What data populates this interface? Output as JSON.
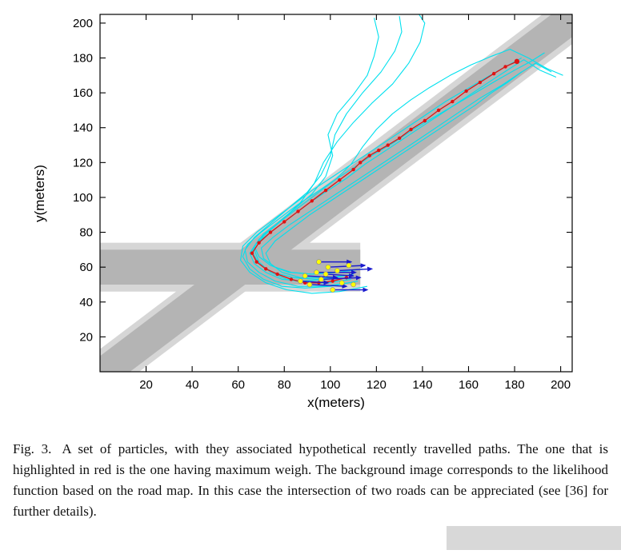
{
  "figure": {
    "caption_label": "Fig. 3.",
    "caption_text": "A set of particles, with they associated hypothetical recently travelled paths. The one that is highlighted in red is the one having maximum weigh. The background image corresponds to the likelihood function based on the road map. In this case the intersection of two roads can be appreciated (see [36] for further details)."
  },
  "colors": {
    "road_dark": "#b4b4b4",
    "road_light": "#d6d6d6",
    "particle_path": "#00e0ee",
    "best_path": "#e01212",
    "particle_vector": "#1a1acd",
    "particle_dot": "#ffff00",
    "axis": "#000000",
    "artifact_gray": "#d8d8d8"
  },
  "chart_data": {
    "type": "line",
    "title": "",
    "xlabel": "x(meters)",
    "ylabel": "y(meters)",
    "xlim": [
      0,
      205
    ],
    "ylim": [
      0,
      205
    ],
    "xticks": [
      20,
      40,
      60,
      80,
      100,
      120,
      140,
      160,
      180,
      200
    ],
    "yticks": [
      20,
      40,
      60,
      80,
      100,
      120,
      140,
      160,
      180,
      200
    ],
    "grid": false,
    "legend": null,
    "roads": [
      {
        "name": "diagonal-road",
        "p1": [
          -8,
          -10
        ],
        "p2": [
          210,
          208
        ],
        "dark_halfwidth": 11,
        "light_halfwidth": 15
      },
      {
        "name": "horizontal-road",
        "p1": [
          0,
          60
        ],
        "p2": [
          113,
          60
        ],
        "dark_halfwidth": 10,
        "light_halfwidth": 14
      }
    ],
    "particle_paths": [
      [
        [
          110,
          56
        ],
        [
          98,
          53
        ],
        [
          88,
          52
        ],
        [
          79,
          53
        ],
        [
          72,
          57
        ],
        [
          67,
          62
        ],
        [
          65,
          68
        ],
        [
          68,
          74
        ],
        [
          75,
          81
        ],
        [
          83,
          89
        ],
        [
          91,
          97
        ],
        [
          99,
          104
        ],
        [
          107,
          111
        ],
        [
          115,
          119
        ],
        [
          123,
          126
        ],
        [
          131,
          133
        ],
        [
          139,
          140
        ],
        [
          147,
          147
        ],
        [
          155,
          154
        ],
        [
          163,
          161
        ],
        [
          171,
          168
        ],
        [
          178,
          174
        ],
        [
          184,
          179
        ],
        [
          191,
          173
        ],
        [
          198,
          169
        ]
      ],
      [
        [
          112,
          52
        ],
        [
          100,
          49
        ],
        [
          89,
          48
        ],
        [
          79,
          49
        ],
        [
          71,
          53
        ],
        [
          65,
          59
        ],
        [
          62,
          66
        ],
        [
          64,
          73
        ],
        [
          70,
          80
        ],
        [
          78,
          88
        ],
        [
          86,
          96
        ],
        [
          94,
          103
        ],
        [
          102,
          110
        ],
        [
          110,
          117
        ],
        [
          118,
          124
        ],
        [
          127,
          131
        ],
        [
          136,
          139
        ],
        [
          145,
          146
        ],
        [
          154,
          153
        ],
        [
          163,
          160
        ],
        [
          172,
          167
        ],
        [
          180,
          173
        ],
        [
          187,
          178
        ],
        [
          193,
          183
        ]
      ],
      [
        [
          108,
          51
        ],
        [
          97,
          49
        ],
        [
          86,
          49
        ],
        [
          76,
          52
        ],
        [
          69,
          57
        ],
        [
          64,
          63
        ],
        [
          63,
          70
        ],
        [
          67,
          77
        ],
        [
          74,
          85
        ],
        [
          82,
          94
        ],
        [
          90,
          103
        ],
        [
          96,
          113
        ],
        [
          100,
          124
        ],
        [
          102,
          136
        ],
        [
          107,
          148
        ],
        [
          114,
          160
        ],
        [
          122,
          172
        ],
        [
          128,
          184
        ],
        [
          131,
          195
        ],
        [
          130,
          204
        ]
      ],
      [
        [
          105,
          55
        ],
        [
          94,
          53
        ],
        [
          84,
          54
        ],
        [
          75,
          57
        ],
        [
          69,
          62
        ],
        [
          66,
          69
        ],
        [
          69,
          76
        ],
        [
          76,
          84
        ],
        [
          84,
          93
        ],
        [
          92,
          102
        ],
        [
          98,
          112
        ],
        [
          101,
          124
        ],
        [
          99,
          136
        ],
        [
          103,
          148
        ],
        [
          110,
          159
        ],
        [
          116,
          170
        ],
        [
          119,
          181
        ],
        [
          121,
          192
        ],
        [
          119,
          203
        ]
      ],
      [
        [
          103,
          57
        ],
        [
          92,
          56
        ],
        [
          82,
          57
        ],
        [
          74,
          61
        ],
        [
          69,
          66
        ],
        [
          67,
          72
        ],
        [
          71,
          79
        ],
        [
          78,
          86
        ],
        [
          86,
          94
        ],
        [
          94,
          102
        ],
        [
          102,
          110
        ],
        [
          109,
          119
        ],
        [
          114,
          129
        ],
        [
          120,
          139
        ],
        [
          127,
          148
        ],
        [
          135,
          156
        ],
        [
          143,
          163
        ],
        [
          152,
          170
        ],
        [
          161,
          176
        ],
        [
          170,
          181
        ],
        [
          178,
          185
        ],
        [
          186,
          180
        ],
        [
          194,
          174
        ],
        [
          201,
          170
        ]
      ],
      [
        [
          114,
          59
        ],
        [
          103,
          57
        ],
        [
          92,
          56
        ],
        [
          83,
          57
        ],
        [
          76,
          60
        ],
        [
          71,
          65
        ],
        [
          70,
          71
        ],
        [
          75,
          77
        ],
        [
          82,
          84
        ],
        [
          90,
          91
        ],
        [
          98,
          98
        ],
        [
          106,
          105
        ],
        [
          114,
          112
        ],
        [
          122,
          119
        ],
        [
          130,
          126
        ],
        [
          138,
          133
        ],
        [
          147,
          141
        ],
        [
          156,
          149
        ],
        [
          165,
          157
        ],
        [
          174,
          164
        ],
        [
          182,
          171
        ],
        [
          189,
          177
        ],
        [
          196,
          172
        ]
      ],
      [
        [
          116,
          49
        ],
        [
          104,
          46
        ],
        [
          92,
          45
        ],
        [
          81,
          47
        ],
        [
          72,
          51
        ],
        [
          65,
          57
        ],
        [
          61,
          64
        ],
        [
          62,
          72
        ],
        [
          68,
          80
        ],
        [
          76,
          88
        ],
        [
          84,
          96
        ],
        [
          92,
          104
        ],
        [
          100,
          111
        ],
        [
          108,
          118
        ],
        [
          116,
          125
        ],
        [
          124,
          132
        ],
        [
          132,
          139
        ],
        [
          141,
          147
        ],
        [
          150,
          155
        ],
        [
          159,
          162
        ],
        [
          168,
          169
        ],
        [
          176,
          175
        ],
        [
          183,
          180
        ]
      ],
      [
        [
          109,
          53
        ],
        [
          99,
          51
        ],
        [
          90,
          51
        ],
        [
          81,
          53
        ],
        [
          74,
          57
        ],
        [
          69,
          63
        ],
        [
          67,
          70
        ],
        [
          71,
          78
        ],
        [
          79,
          87
        ],
        [
          87,
          97
        ],
        [
          93,
          108
        ],
        [
          97,
          120
        ],
        [
          103,
          132
        ],
        [
          110,
          143
        ],
        [
          118,
          154
        ],
        [
          127,
          165
        ],
        [
          134,
          177
        ],
        [
          139,
          189
        ],
        [
          141,
          200
        ],
        [
          138,
          206
        ]
      ],
      [
        [
          96,
          54
        ],
        [
          87,
          54
        ],
        [
          79,
          57
        ],
        [
          74,
          62
        ],
        [
          72,
          68
        ],
        [
          76,
          75
        ],
        [
          83,
          82
        ],
        [
          91,
          90
        ],
        [
          99,
          97
        ],
        [
          107,
          104
        ],
        [
          115,
          111
        ],
        [
          123,
          118
        ],
        [
          131,
          125
        ],
        [
          139,
          132
        ],
        [
          147,
          139
        ],
        [
          155,
          146
        ],
        [
          163,
          153
        ],
        [
          170,
          160
        ],
        [
          177,
          166
        ],
        [
          183,
          172
        ]
      ]
    ],
    "best_path": [
      [
        107,
        54
      ],
      [
        101,
        52
      ],
      [
        95,
        51
      ],
      [
        89,
        51
      ],
      [
        83,
        53
      ],
      [
        77,
        56
      ],
      [
        72,
        59
      ],
      [
        68,
        63
      ],
      [
        66,
        68
      ],
      [
        69,
        74
      ],
      [
        74,
        80
      ],
      [
        80,
        86
      ],
      [
        86,
        92
      ],
      [
        92,
        98
      ],
      [
        98,
        104
      ],
      [
        104,
        110
      ],
      [
        110,
        116
      ],
      [
        113,
        120
      ],
      [
        117,
        124
      ],
      [
        121,
        127
      ],
      [
        125,
        130
      ],
      [
        130,
        134
      ],
      [
        135,
        139
      ],
      [
        141,
        144
      ],
      [
        147,
        150
      ],
      [
        153,
        155
      ],
      [
        159,
        161
      ],
      [
        165,
        166
      ],
      [
        171,
        171
      ],
      [
        176,
        175
      ],
      [
        181,
        178
      ]
    ],
    "particle_vectors": [
      [
        [
          94,
          57
        ],
        [
          111,
          57
        ]
      ],
      [
        [
          96,
          53
        ],
        [
          113,
          54
        ]
      ],
      [
        [
          91,
          50
        ],
        [
          107,
          49
        ]
      ],
      [
        [
          99,
          60
        ],
        [
          115,
          61
        ]
      ],
      [
        [
          89,
          55
        ],
        [
          103,
          54
        ]
      ],
      [
        [
          101,
          47
        ],
        [
          116,
          47
        ]
      ],
      [
        [
          95,
          63
        ],
        [
          109,
          63
        ]
      ],
      [
        [
          87,
          52
        ],
        [
          99,
          51
        ]
      ],
      [
        [
          103,
          58
        ],
        [
          118,
          59
        ]
      ],
      [
        [
          98,
          56
        ],
        [
          110,
          55
        ]
      ]
    ],
    "particle_dots": [
      [
        94,
        57
      ],
      [
        96,
        53
      ],
      [
        91,
        50
      ],
      [
        99,
        60
      ],
      [
        89,
        55
      ],
      [
        101,
        47
      ],
      [
        95,
        63
      ],
      [
        87,
        52
      ],
      [
        103,
        58
      ],
      [
        105,
        51
      ],
      [
        98,
        56
      ],
      [
        110,
        50
      ],
      [
        108,
        61
      ]
    ]
  }
}
